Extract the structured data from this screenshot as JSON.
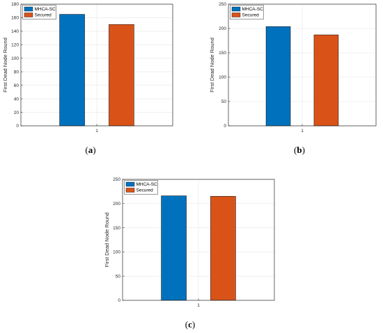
{
  "figure": {
    "panels": [
      {
        "caption_letter": "a"
      },
      {
        "caption_letter": "b"
      },
      {
        "caption_letter": "c"
      }
    ]
  },
  "colors": {
    "series_1": "#0072BD",
    "series_2": "#D95319",
    "grid": "#e6e6e6",
    "axis": "#262626"
  },
  "chart_data": [
    {
      "type": "bar",
      "categories": [
        "1"
      ],
      "series": [
        {
          "name": "MHCA-SC",
          "values": [
            165
          ]
        },
        {
          "name": "Secured",
          "values": [
            150
          ]
        }
      ],
      "ylabel": "First Dead Node Round",
      "xlabel": "",
      "ylim": [
        0,
        180
      ],
      "yticks": [
        0,
        20,
        40,
        60,
        80,
        100,
        120,
        140,
        160,
        180
      ],
      "grid": true,
      "legend": "top-left"
    },
    {
      "type": "bar",
      "categories": [
        "1"
      ],
      "series": [
        {
          "name": "MHCA-SC",
          "values": [
            204
          ]
        },
        {
          "name": "Secured",
          "values": [
            187
          ]
        }
      ],
      "ylabel": "First Dead Node Round",
      "xlabel": "",
      "ylim": [
        0,
        250
      ],
      "yticks": [
        0,
        50,
        100,
        150,
        200,
        250
      ],
      "grid": true,
      "legend": "top-left"
    },
    {
      "type": "bar",
      "categories": [
        "1"
      ],
      "series": [
        {
          "name": "MHCA-SC",
          "values": [
            216
          ]
        },
        {
          "name": "Secured",
          "values": [
            215
          ]
        }
      ],
      "ylabel": "First Dead Node Round",
      "xlabel": "",
      "ylim": [
        0,
        250
      ],
      "yticks": [
        0,
        50,
        100,
        150,
        200,
        250
      ],
      "grid": true,
      "legend": "top-left"
    }
  ]
}
